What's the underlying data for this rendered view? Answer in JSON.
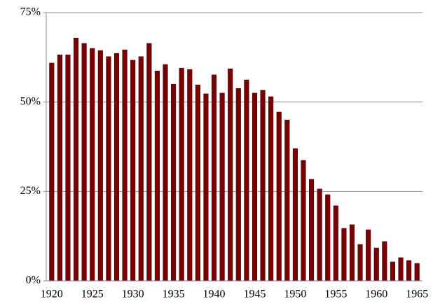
{
  "chart_data": {
    "type": "bar",
    "categories": [
      "1920",
      null,
      null,
      null,
      null,
      "1925",
      null,
      null,
      null,
      null,
      "1930",
      null,
      null,
      null,
      null,
      "1935",
      null,
      null,
      null,
      null,
      "1940",
      null,
      null,
      null,
      null,
      "1945",
      null,
      null,
      null,
      null,
      "1950",
      null,
      null,
      null,
      null,
      "1955",
      null,
      null,
      null,
      null,
      "1960",
      null,
      null,
      null,
      null,
      "1965"
    ],
    "values": [
      60.9,
      63.2,
      63.2,
      67.9,
      66.4,
      65.0,
      64.4,
      62.7,
      63.6,
      64.6,
      61.7,
      62.7,
      66.4,
      58.7,
      60.5,
      55.0,
      59.5,
      59.1,
      54.8,
      52.3,
      57.6,
      52.5,
      59.3,
      53.8,
      56.2,
      52.5,
      53.3,
      51.5,
      47.2,
      45.0,
      37.0,
      33.7,
      28.4,
      25.7,
      24.1,
      21.0,
      14.7,
      15.7,
      10.2,
      14.3,
      9.2,
      11.0,
      5.3,
      6.5,
      5.7,
      4.9
    ],
    "color": "#7a0000",
    "ylim": [
      0,
      75
    ],
    "yticks": [
      {
        "value": 0,
        "label": "0%"
      },
      {
        "value": 25,
        "label": "25%"
      },
      {
        "value": 50,
        "label": "50%"
      },
      {
        "value": 75,
        "label": "75%"
      }
    ],
    "grid": true
  }
}
